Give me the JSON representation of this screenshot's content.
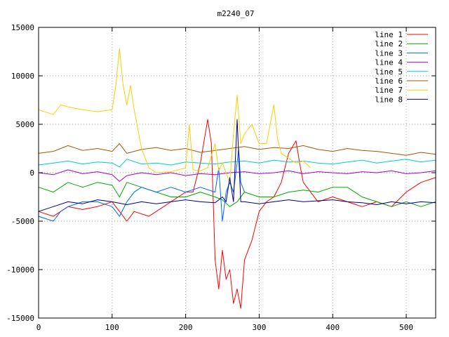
{
  "chart_data": {
    "type": "line",
    "title": "m2240_07",
    "xlabel": "",
    "ylabel": "",
    "xlim": [
      0,
      540
    ],
    "ylim": [
      -15000,
      15000
    ],
    "xticks": [
      0,
      100,
      200,
      300,
      400,
      500
    ],
    "yticks": [
      -15000,
      -10000,
      -5000,
      0,
      5000,
      10000,
      15000
    ],
    "grid": true,
    "legend_position": "top-right",
    "series": [
      {
        "name": "line 1",
        "color": "#ff0000",
        "x": [
          0,
          20,
          40,
          60,
          80,
          100,
          110,
          120,
          130,
          150,
          170,
          190,
          200,
          210,
          220,
          230,
          235,
          240,
          245,
          250,
          255,
          260,
          265,
          270,
          275,
          280,
          290,
          300,
          310,
          320,
          330,
          340,
          350,
          355,
          360,
          370,
          380,
          400,
          420,
          440,
          460,
          480,
          500,
          520,
          540
        ],
        "y": [
          -4000,
          -4500,
          -3500,
          -3800,
          -3500,
          -3000,
          -4000,
          -5000,
          -4000,
          -4500,
          -3500,
          -2500,
          -2000,
          -2000,
          1000,
          5500,
          3000,
          -9000,
          -12000,
          -8000,
          -11000,
          -10000,
          -13500,
          -12000,
          -14000,
          -9000,
          -7000,
          -4000,
          -3000,
          -2500,
          -1000,
          2000,
          3300,
          1000,
          -1000,
          -2000,
          -3000,
          -2500,
          -3000,
          -3500,
          -3000,
          -3500,
          -2000,
          -1000,
          -500
        ]
      },
      {
        "name": "line 2",
        "color": "#00aa00",
        "x": [
          0,
          20,
          40,
          60,
          80,
          100,
          110,
          120,
          140,
          160,
          180,
          200,
          220,
          240,
          250,
          260,
          270,
          280,
          300,
          320,
          340,
          360,
          380,
          400,
          420,
          440,
          460,
          480,
          500,
          520,
          540
        ],
        "y": [
          -1500,
          -2000,
          -1000,
          -1500,
          -1000,
          -1300,
          -2500,
          -1000,
          -1500,
          -2000,
          -2500,
          -2500,
          -2000,
          -2500,
          -2800,
          -3500,
          -3000,
          -2000,
          -2500,
          -2500,
          -2000,
          -1800,
          -2000,
          -1500,
          -1500,
          -2500,
          -3000,
          -3500,
          -3000,
          -3500,
          -3000
        ]
      },
      {
        "name": "line 3",
        "color": "#0066ff",
        "x": [
          0,
          20,
          30,
          40,
          60,
          80,
          100,
          110,
          120,
          130,
          140,
          160,
          180,
          200,
          220,
          240,
          245,
          250,
          255,
          260,
          265,
          270,
          272,
          275,
          280
        ],
        "y": [
          -4500,
          -5000,
          -4000,
          -3500,
          -3000,
          -3000,
          -3500,
          -4500,
          -3000,
          -2000,
          -1500,
          -2000,
          -1500,
          -2000,
          -1500,
          -2000,
          500,
          -5000,
          -2000,
          -1000,
          -2000,
          1000,
          2500,
          -1000,
          -2000
        ]
      },
      {
        "name": "line 4",
        "color": "#aa00cc",
        "x": [
          0,
          20,
          40,
          60,
          80,
          100,
          110,
          120,
          140,
          160,
          180,
          200,
          220,
          240,
          260,
          280,
          300,
          320,
          340,
          360,
          380,
          400,
          420,
          440,
          460,
          480,
          500,
          520,
          540
        ],
        "y": [
          0,
          -200,
          300,
          -100,
          100,
          -200,
          -900,
          -300,
          0,
          -200,
          0,
          -300,
          -100,
          -200,
          0,
          100,
          -100,
          0,
          200,
          -100,
          100,
          0,
          -100,
          100,
          0,
          200,
          -100,
          0,
          200
        ]
      },
      {
        "name": "line 5",
        "color": "#00cccc",
        "x": [
          0,
          20,
          40,
          60,
          80,
          100,
          110,
          120,
          140,
          160,
          180,
          200,
          220,
          240,
          260,
          280,
          300,
          320,
          340,
          360,
          380,
          400,
          420,
          440,
          460,
          480,
          500,
          520,
          540
        ],
        "y": [
          800,
          1000,
          1200,
          900,
          1100,
          1000,
          600,
          1400,
          900,
          1000,
          800,
          1100,
          1000,
          900,
          1100,
          1200,
          1000,
          1300,
          1100,
          1200,
          1000,
          900,
          1100,
          1300,
          1000,
          1200,
          1400,
          1100,
          1300
        ]
      },
      {
        "name": "line 6",
        "color": "#aa5500",
        "x": [
          0,
          20,
          40,
          60,
          80,
          100,
          110,
          120,
          140,
          160,
          180,
          200,
          220,
          240,
          260,
          280,
          300,
          320,
          340,
          360,
          380,
          400,
          420,
          440,
          460,
          480,
          500,
          520,
          540
        ],
        "y": [
          2000,
          2200,
          2800,
          2300,
          2500,
          2200,
          3000,
          2000,
          2400,
          2600,
          2300,
          2500,
          2100,
          2300,
          2500,
          2700,
          2400,
          2600,
          2500,
          2800,
          2400,
          2200,
          2500,
          2300,
          2200,
          2000,
          1800,
          2100,
          1900
        ]
      },
      {
        "name": "line 7",
        "color": "#ffcc00",
        "x": [
          0,
          20,
          30,
          40,
          60,
          80,
          100,
          105,
          110,
          115,
          120,
          125,
          130,
          140,
          150,
          160,
          180,
          200,
          205,
          210,
          220,
          230,
          240,
          245,
          250,
          260,
          265,
          270,
          272,
          275,
          280,
          290,
          300,
          310,
          320,
          325,
          330,
          340,
          350,
          360,
          370
        ],
        "y": [
          6500,
          6000,
          7000,
          6800,
          6500,
          6300,
          6500,
          9000,
          12800,
          9000,
          7000,
          9000,
          6500,
          2500,
          500,
          0,
          100,
          500,
          5000,
          300,
          200,
          500,
          3000,
          200,
          1000,
          -1000,
          4000,
          8000,
          6000,
          3000,
          4000,
          5000,
          3000,
          3000,
          7000,
          3500,
          2000,
          1500,
          1000,
          1200,
          500
        ]
      },
      {
        "name": "line 8",
        "color": "#000088",
        "x": [
          0,
          20,
          40,
          60,
          80,
          100,
          120,
          140,
          160,
          180,
          200,
          220,
          240,
          250,
          255,
          260,
          265,
          270,
          275,
          280,
          300,
          320,
          340,
          360,
          380,
          400,
          420,
          440,
          460,
          480,
          500,
          520,
          540
        ],
        "y": [
          -4000,
          -3500,
          -3000,
          -3200,
          -2800,
          -3000,
          -3300,
          -3000,
          -3200,
          -3000,
          -2800,
          -3000,
          -3100,
          -2500,
          -3000,
          -500,
          -3000,
          5500,
          -3000,
          -3000,
          -3200,
          -3000,
          -2800,
          -3000,
          -2900,
          -2800,
          -3000,
          -3100,
          -3300,
          -3000,
          -3200,
          -3000,
          -3100
        ]
      }
    ]
  }
}
